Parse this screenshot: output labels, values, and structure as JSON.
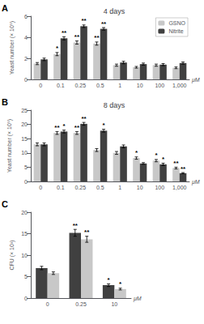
{
  "chart_data": [
    {
      "type": "bar",
      "panel_label": "A",
      "title": "4 days",
      "ylabel": "Yeast number (× 10⁵)",
      "xlabel": "μM",
      "categories": [
        "0",
        "0.1",
        "0.25",
        "0.5",
        "1",
        "10",
        "100",
        "1,000"
      ],
      "series": [
        {
          "name": "GSNO",
          "color": "#c8c8c8",
          "values": [
            1.5,
            2.4,
            3.5,
            3.4,
            1.35,
            1.15,
            1.35,
            1.1
          ],
          "errors": [
            0.1,
            0.15,
            0.15,
            0.15,
            0.1,
            0.08,
            0.1,
            0.08
          ]
        },
        {
          "name": "Nitrite",
          "color": "#404040",
          "values": [
            1.9,
            3.9,
            5.05,
            4.8,
            1.6,
            1.45,
            1.4,
            1.55
          ],
          "errors": [
            0.12,
            0.15,
            0.12,
            0.12,
            0.12,
            0.1,
            0.1,
            0.1
          ]
        }
      ],
      "ylim": [
        0,
        6
      ],
      "yticks": [
        0,
        2,
        4,
        6
      ],
      "grid": false,
      "legend": "upper right",
      "annotations": [
        {
          "text": "*",
          "category": "0.1",
          "series": "GSNO"
        },
        {
          "text": "**",
          "category": "0.25",
          "series": "GSNO"
        },
        {
          "text": "**",
          "category": "0.5",
          "series": "GSNO"
        },
        {
          "text": "**",
          "category": "0.1",
          "series": "Nitrite"
        },
        {
          "text": "**",
          "category": "0.25",
          "series": "Nitrite"
        },
        {
          "text": "**",
          "category": "0.5",
          "series": "Nitrite"
        }
      ]
    },
    {
      "type": "bar",
      "panel_label": "B",
      "title": "8 days",
      "ylabel": "Yeast number (× 10⁵)",
      "xlabel": "μM",
      "categories": [
        "0",
        "0.1",
        "0.25",
        "0.5",
        "1",
        "10",
        "100",
        "1,000"
      ],
      "series": [
        {
          "name": "GSNO",
          "color": "#c8c8c8",
          "values": [
            13.0,
            17.0,
            17.0,
            11.0,
            10.0,
            8.2,
            7.3,
            4.7
          ],
          "errors": [
            0.5,
            0.5,
            0.5,
            0.5,
            0.5,
            0.4,
            0.4,
            0.3
          ]
        },
        {
          "name": "Nitrite",
          "color": "#404040",
          "values": [
            13.0,
            17.5,
            20.2,
            17.8,
            12.3,
            6.3,
            6.0,
            2.9
          ],
          "errors": [
            0.5,
            0.5,
            0.5,
            0.5,
            0.5,
            0.3,
            0.4,
            0.2
          ]
        }
      ],
      "ylim": [
        0,
        25
      ],
      "yticks": [
        0,
        5,
        10,
        15,
        20,
        25
      ],
      "grid": false,
      "annotations": [
        {
          "text": "**",
          "category": "0.1",
          "series": "GSNO"
        },
        {
          "text": "**",
          "category": "0.25",
          "series": "GSNO"
        },
        {
          "text": "*",
          "category": "10",
          "series": "GSNO"
        },
        {
          "text": "*",
          "category": "100",
          "series": "GSNO"
        },
        {
          "text": "**",
          "category": "1,000",
          "series": "GSNO"
        },
        {
          "text": "*",
          "category": "0.1",
          "series": "Nitrite"
        },
        {
          "text": "**",
          "category": "0.25",
          "series": "Nitrite"
        },
        {
          "text": "*",
          "category": "0.5",
          "series": "Nitrite"
        },
        {
          "text": "*",
          "category": "100",
          "series": "Nitrite"
        },
        {
          "text": "**",
          "category": "1,000",
          "series": "Nitrite"
        }
      ]
    },
    {
      "type": "bar",
      "panel_label": "C",
      "ylabel": "CFU (× 10³)",
      "xlabel": "μM",
      "categories": [
        "0",
        "0.25",
        "10"
      ],
      "series": [
        {
          "name": "Nitrite",
          "color": "#404040",
          "values": [
            7.0,
            15.2,
            3.0
          ],
          "errors": [
            0.4,
            0.8,
            0.3
          ]
        },
        {
          "name": "GSNO",
          "color": "#c8c8c8",
          "values": [
            5.8,
            13.7,
            2.1
          ],
          "errors": [
            0.3,
            0.7,
            0.2
          ]
        }
      ],
      "ylim": [
        0,
        20
      ],
      "yticks": [
        0,
        5,
        10,
        15,
        20
      ],
      "grid": false,
      "annotations": [
        {
          "text": "**",
          "category": "0.25",
          "series": "Nitrite"
        },
        {
          "text": "*",
          "category": "10",
          "series": "Nitrite"
        },
        {
          "text": "**",
          "category": "0.25",
          "series": "GSNO"
        },
        {
          "text": "*",
          "category": "10",
          "series": "GSNO"
        }
      ]
    }
  ]
}
